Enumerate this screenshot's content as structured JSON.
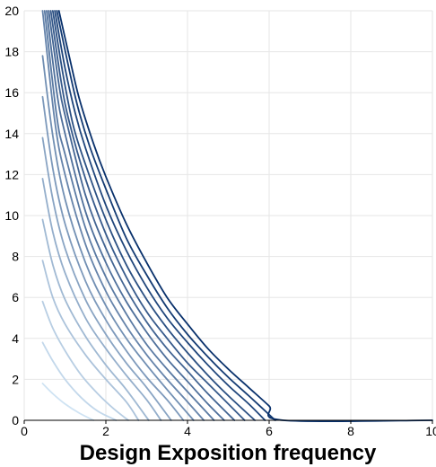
{
  "chart_data": {
    "type": "line",
    "title": "",
    "xlabel": "Design Exposition frequency",
    "ylabel": "",
    "xlim": [
      0,
      10
    ],
    "ylim": [
      0,
      20
    ],
    "xticks": [
      "0",
      "2",
      "4",
      "6",
      "8",
      "10"
    ],
    "yticks": [
      "0",
      "2",
      "4",
      "6",
      "8",
      "10",
      "12",
      "14",
      "16",
      "18",
      "20"
    ],
    "grid": true,
    "legend": "none",
    "color_range": [
      "#cfe3f3",
      "#08306b"
    ],
    "series": [
      {
        "x": [
          0.45,
          0.7,
          1.0,
          1.35,
          1.7
        ],
        "y": [
          1.8,
          1.3,
          0.8,
          0.35,
          0.0
        ]
      },
      {
        "x": [
          0.45,
          0.7,
          1.0,
          1.4,
          1.8,
          2.2,
          2.25
        ],
        "y": [
          3.8,
          2.9,
          2.0,
          1.1,
          0.45,
          0.05,
          0.0
        ]
      },
      {
        "x": [
          0.45,
          0.7,
          1.0,
          1.4,
          1.8,
          2.2,
          2.55
        ],
        "y": [
          5.8,
          4.5,
          3.4,
          2.2,
          1.3,
          0.55,
          0.0
        ]
      },
      {
        "x": [
          0.45,
          0.7,
          1.0,
          1.5,
          2.0,
          2.5,
          2.8
        ],
        "y": [
          7.8,
          6.0,
          4.7,
          3.2,
          2.0,
          0.9,
          0.0
        ]
      },
      {
        "x": [
          0.45,
          0.7,
          1.0,
          1.5,
          2.0,
          2.5,
          3.05
        ],
        "y": [
          9.8,
          7.6,
          5.9,
          4.1,
          2.7,
          1.5,
          0.0
        ]
      },
      {
        "x": [
          0.45,
          0.7,
          1.0,
          1.5,
          2.0,
          2.5,
          3.0,
          3.35
        ],
        "y": [
          11.8,
          9.2,
          7.2,
          5.0,
          3.5,
          2.2,
          1.0,
          0.0
        ]
      },
      {
        "x": [
          0.45,
          0.7,
          1.0,
          1.5,
          2.0,
          2.5,
          3.0,
          3.6
        ],
        "y": [
          13.8,
          10.8,
          8.4,
          5.9,
          4.2,
          2.8,
          1.6,
          0.0
        ]
      },
      {
        "x": [
          0.45,
          0.7,
          1.0,
          1.5,
          2.0,
          2.5,
          3.0,
          3.5,
          3.9
        ],
        "y": [
          15.8,
          12.3,
          9.6,
          6.8,
          4.9,
          3.4,
          2.1,
          1.0,
          0.0
        ]
      },
      {
        "x": [
          0.45,
          0.7,
          1.0,
          1.5,
          2.0,
          2.5,
          3.0,
          3.5,
          4.15
        ],
        "y": [
          17.8,
          13.9,
          10.8,
          7.7,
          5.6,
          4.0,
          2.7,
          1.5,
          0.0
        ]
      },
      {
        "x": [
          0.45,
          0.75,
          1.0,
          1.5,
          2.0,
          2.5,
          3.0,
          3.5,
          4.0,
          4.4
        ],
        "y": [
          20.0,
          14.6,
          12.0,
          8.6,
          6.3,
          4.6,
          3.2,
          2.0,
          0.9,
          0.0
        ]
      },
      {
        "x": [
          0.5,
          0.8,
          1.0,
          1.5,
          2.0,
          2.5,
          3.0,
          3.5,
          4.0,
          4.65
        ],
        "y": [
          20.0,
          14.8,
          13.0,
          9.4,
          7.0,
          5.2,
          3.7,
          2.5,
          1.4,
          0.0
        ]
      },
      {
        "x": [
          0.55,
          0.8,
          1.0,
          1.5,
          2.0,
          2.5,
          3.0,
          3.5,
          4.0,
          4.5,
          4.9
        ],
        "y": [
          20.0,
          16.0,
          14.0,
          10.2,
          7.7,
          5.8,
          4.3,
          3.0,
          1.9,
          0.8,
          0.0
        ]
      },
      {
        "x": [
          0.6,
          0.85,
          1.0,
          1.5,
          2.0,
          2.5,
          3.0,
          3.5,
          4.0,
          4.5,
          5.15
        ],
        "y": [
          20.0,
          16.4,
          14.9,
          11.0,
          8.4,
          6.4,
          4.8,
          3.5,
          2.4,
          1.3,
          0.0
        ]
      },
      {
        "x": [
          0.65,
          0.9,
          1.1,
          1.5,
          2.0,
          2.5,
          3.0,
          3.5,
          4.0,
          4.5,
          5.0,
          5.4
        ],
        "y": [
          20.0,
          16.6,
          14.6,
          11.8,
          9.1,
          7.0,
          5.3,
          4.0,
          2.8,
          1.8,
          0.8,
          0.0
        ]
      },
      {
        "x": [
          0.7,
          0.95,
          1.2,
          1.5,
          2.0,
          2.5,
          3.0,
          3.5,
          4.0,
          4.5,
          5.0,
          5.65
        ],
        "y": [
          20.0,
          16.9,
          14.4,
          12.5,
          9.8,
          7.6,
          5.9,
          4.5,
          3.3,
          2.2,
          1.2,
          0.0
        ]
      },
      {
        "x": [
          0.75,
          1.0,
          1.25,
          1.5,
          2.0,
          2.5,
          3.0,
          3.5,
          4.0,
          4.5,
          5.0,
          5.5,
          5.9
        ],
        "y": [
          20.0,
          17.2,
          15.0,
          13.3,
          10.5,
          8.3,
          6.5,
          5.0,
          3.8,
          2.7,
          1.7,
          0.8,
          0.0
        ]
      },
      {
        "x": [
          0.8,
          1.05,
          1.3,
          1.6,
          2.0,
          2.5,
          3.0,
          3.5,
          4.0,
          4.5,
          5.0,
          5.5,
          6.15
        ],
        "y": [
          20.0,
          17.6,
          15.4,
          13.4,
          11.3,
          8.9,
          7.1,
          5.5,
          4.2,
          3.1,
          2.1,
          1.2,
          0.0
        ]
      },
      {
        "x": [
          0.85,
          1.1,
          1.35,
          1.7,
          2.0,
          2.5,
          3.0,
          3.5,
          4.0,
          4.5,
          5.0,
          5.5,
          6.0,
          6.35,
          10.0
        ],
        "y": [
          20.0,
          17.8,
          15.7,
          13.5,
          11.9,
          9.6,
          7.7,
          6.0,
          4.7,
          3.5,
          2.5,
          1.6,
          0.7,
          0.0,
          0.0
        ]
      }
    ]
  }
}
